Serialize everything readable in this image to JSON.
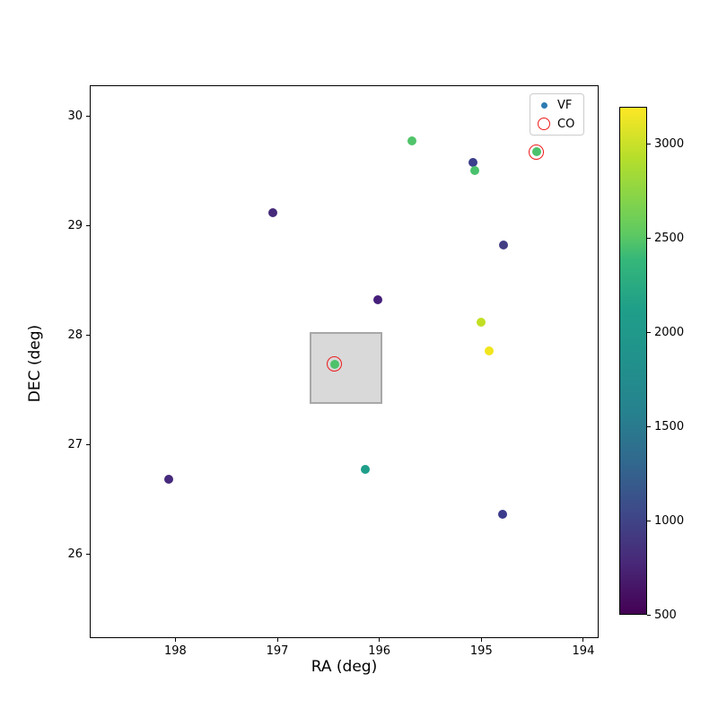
{
  "chart_data": {
    "type": "scatter",
    "title": "",
    "xlabel": "RA (deg)",
    "ylabel": "DEC (deg)",
    "x_axis": {
      "label": "RA (deg)",
      "ticks": [
        198,
        197,
        196,
        195,
        194
      ],
      "range": [
        198.84,
        193.85
      ],
      "reversed": true
    },
    "y_axis": {
      "label": "DEC (deg)",
      "ticks": [
        26,
        27,
        28,
        29,
        30
      ],
      "range": [
        25.23,
        30.28
      ]
    },
    "colorbar": {
      "colormap": "viridis",
      "vmin": 500,
      "vmax": 3200,
      "ticks": [
        500,
        1000,
        1500,
        2000,
        2500,
        3000
      ]
    },
    "legend": [
      {
        "label": "VF",
        "marker": "dot",
        "color": "#2d7bb2"
      },
      {
        "label": "CO",
        "marker": "open-circle",
        "color": "#ee1c1c"
      }
    ],
    "points": [
      {
        "ra": 198.07,
        "dec": 26.69,
        "value": 750,
        "color": "#46297c",
        "co": false
      },
      {
        "ra": 197.05,
        "dec": 29.12,
        "value": 800,
        "color": "#452a7a",
        "co": false
      },
      {
        "ra": 196.45,
        "dec": 27.74,
        "value": 2450,
        "color": "#4dc26b",
        "co": true
      },
      {
        "ra": 196.15,
        "dec": 26.78,
        "value": 2050,
        "color": "#1f9e8a",
        "co": false
      },
      {
        "ra": 196.02,
        "dec": 28.33,
        "value": 700,
        "color": "#461f7b",
        "co": false
      },
      {
        "ra": 195.69,
        "dec": 29.78,
        "value": 2450,
        "color": "#50c46a",
        "co": false
      },
      {
        "ra": 195.09,
        "dec": 29.58,
        "value": 1100,
        "color": "#3b3e8c",
        "co": false
      },
      {
        "ra": 195.07,
        "dec": 29.51,
        "value": 2400,
        "color": "#4ac16d",
        "co": false
      },
      {
        "ra": 195.01,
        "dec": 28.12,
        "value": 2950,
        "color": "#c2df23",
        "co": false
      },
      {
        "ra": 194.93,
        "dec": 27.86,
        "value": 3100,
        "color": "#f1e51d",
        "co": false
      },
      {
        "ra": 194.79,
        "dec": 28.83,
        "value": 1000,
        "color": "#433d84",
        "co": false
      },
      {
        "ra": 194.8,
        "dec": 26.37,
        "value": 1100,
        "color": "#3c3a8c",
        "co": false
      },
      {
        "ra": 194.47,
        "dec": 29.68,
        "value": 2400,
        "color": "#4cc26c",
        "co": true
      }
    ],
    "highlight_box": {
      "ra_range": [
        196.69,
        195.98
      ],
      "dec_range": [
        27.38,
        28.03
      ],
      "fill": "#d9d9d9",
      "edge": "#a8a8a8"
    }
  }
}
